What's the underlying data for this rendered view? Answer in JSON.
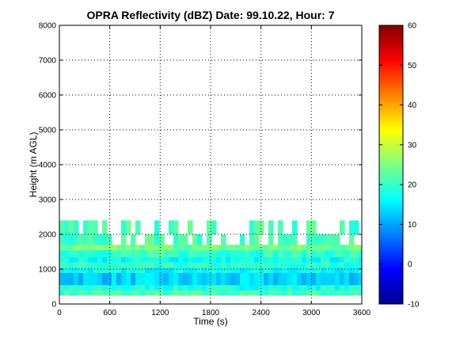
{
  "chart_data": {
    "type": "heatmap",
    "title": "OPRA Reflectivity (dBZ)  Date: 99.10.22, Hour: 7",
    "xlabel": "Time (s)",
    "ylabel": "Height (m AGL)",
    "xlim": [
      0,
      3600
    ],
    "ylim": [
      0,
      8000
    ],
    "xticks": [
      "0",
      "600",
      "1200",
      "1800",
      "2400",
      "3000",
      "3600"
    ],
    "yticks": [
      "0",
      "1000",
      "2000",
      "3000",
      "4000",
      "5000",
      "6000",
      "7000",
      "8000"
    ],
    "grid": true,
    "colormap": "jet",
    "colorbar": {
      "clim": [
        -10,
        60
      ],
      "ticks": [
        "-10",
        "0",
        "10",
        "20",
        "30",
        "40",
        "50",
        "60"
      ]
    },
    "layers": [
      {
        "height_range": [
          250,
          400
        ],
        "dbz": 21
      },
      {
        "height_range": [
          400,
          550
        ],
        "dbz": 18
      },
      {
        "height_range": [
          550,
          900
        ],
        "dbz": 13
      },
      {
        "height_range": [
          900,
          1050
        ],
        "dbz": 17
      },
      {
        "height_range": [
          1050,
          1200
        ],
        "dbz": 19
      },
      {
        "height_range": [
          1200,
          1350
        ],
        "dbz": 17
      },
      {
        "height_range": [
          1350,
          1550
        ],
        "dbz": 20
      },
      {
        "height_range": [
          1550,
          1700
        ],
        "dbz": 24
      },
      {
        "height_range": [
          1700,
          2000
        ],
        "dbz": 21
      },
      {
        "height_range": [
          2000,
          2400
        ],
        "dbz": 21
      }
    ],
    "echo_top_m": 2400
  },
  "colors": {
    "background": "#ffffff",
    "axes": "#000000"
  }
}
